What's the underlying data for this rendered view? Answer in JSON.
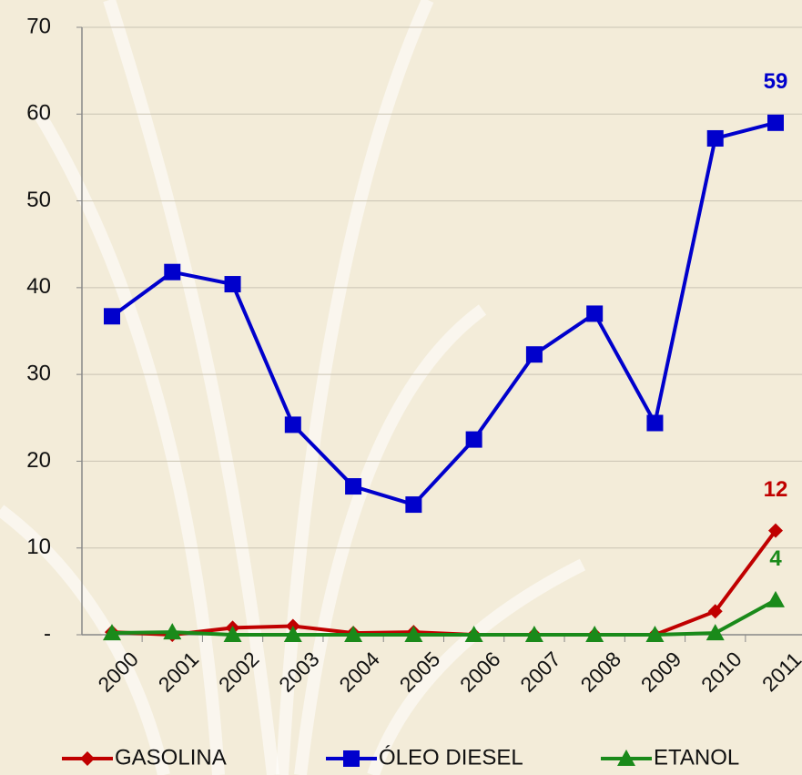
{
  "chart_data": {
    "type": "line",
    "categories": [
      "2000",
      "2001",
      "2002",
      "2003",
      "2004",
      "2005",
      "2006",
      "2007",
      "2008",
      "2009",
      "2010",
      "2011"
    ],
    "series": [
      {
        "name": "GASOLINA",
        "color": "#c00000",
        "marker": "diamond",
        "values": [
          0.3,
          0.0,
          0.8,
          1.0,
          0.2,
          0.3,
          0.0,
          0.0,
          0.0,
          0.0,
          2.7,
          12
        ]
      },
      {
        "name": "ÓLEO DIESEL",
        "color": "#0000cc",
        "marker": "square",
        "values": [
          36.7,
          41.8,
          40.4,
          24.2,
          17.1,
          15.0,
          22.5,
          32.3,
          37.0,
          24.4,
          57.2,
          59
        ]
      },
      {
        "name": "ETANOL",
        "color": "#1a8a1a",
        "marker": "triangle",
        "values": [
          0.2,
          0.3,
          0.0,
          0.0,
          0.0,
          0.0,
          0.0,
          0.0,
          0.0,
          0.0,
          0.2,
          4
        ]
      }
    ],
    "ylim": [
      0,
      70
    ],
    "yticks": [
      {
        "value": 0,
        "label": "-"
      },
      10,
      20,
      30,
      40,
      50,
      60,
      70
    ],
    "grid": true,
    "legend": "bottom"
  }
}
